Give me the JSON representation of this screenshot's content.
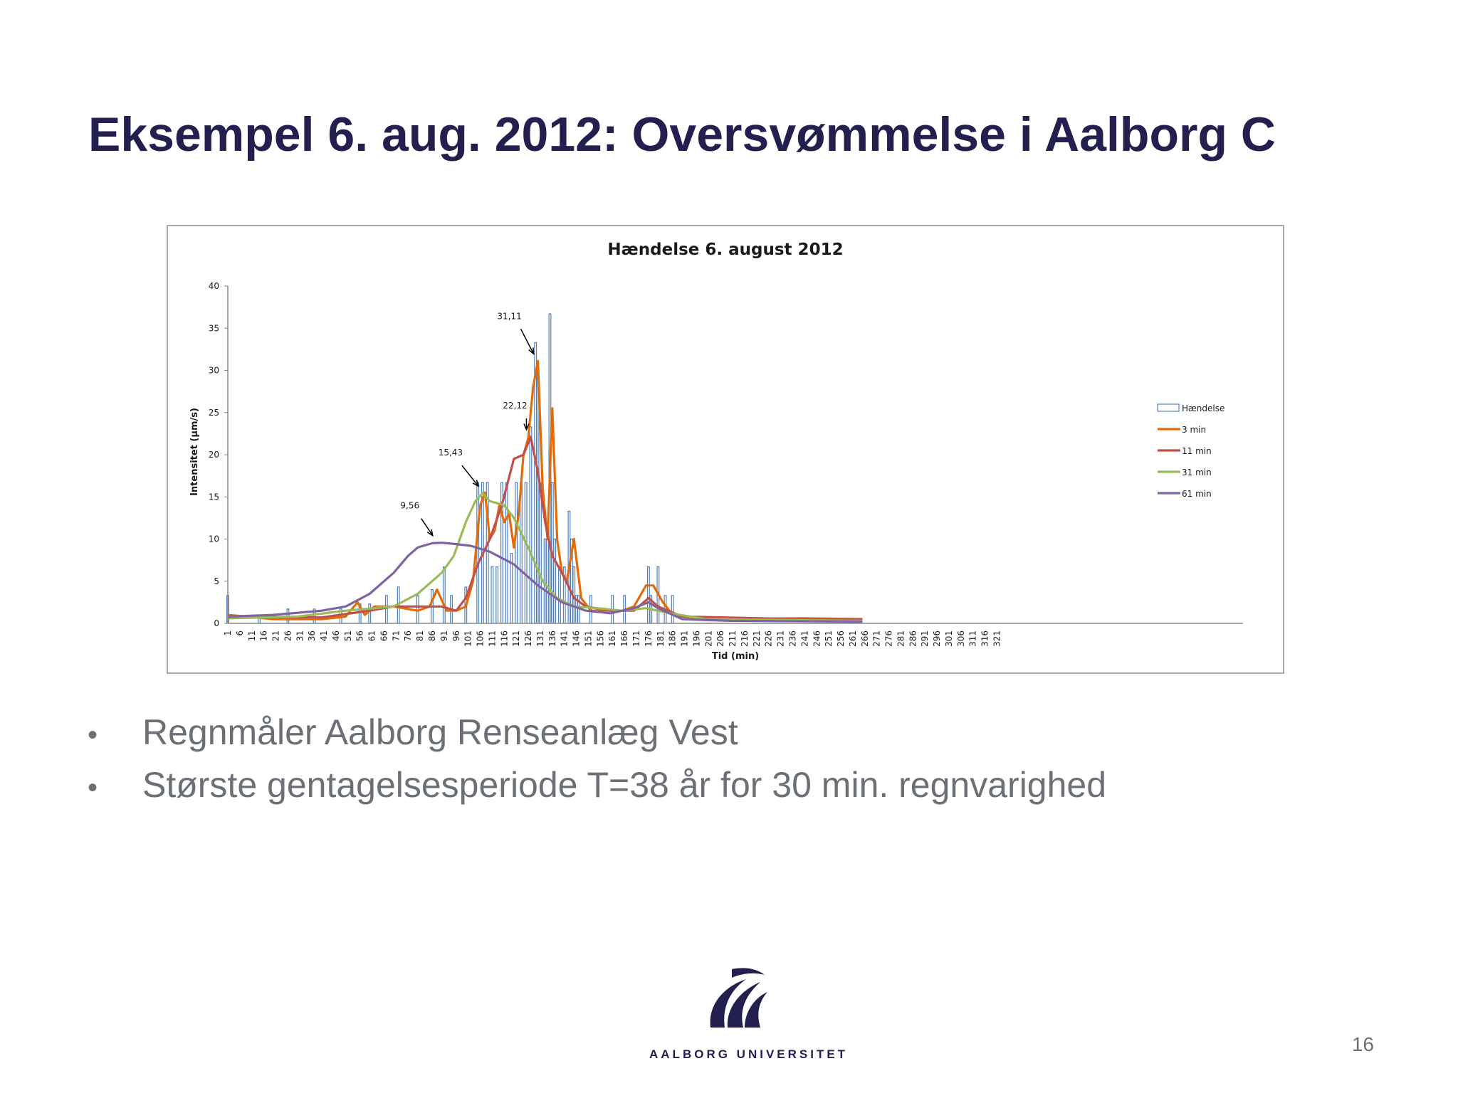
{
  "slide": {
    "title": "Eksempel 6. aug. 2012: Oversvømmelse i Aalborg C",
    "bullets": [
      "Regnmåler Aalborg Renseanlæg Vest",
      "Største gentagelsesperiode T=38 år for 30 min. regnvarighed"
    ],
    "page_number": "16",
    "logo_text": "AALBORG UNIVERSITET",
    "colors": {
      "title": "#231f4f",
      "text": "#6b7077"
    }
  },
  "chart_data": {
    "type": "bar",
    "title": "Hændelse 6. august 2012",
    "xlabel": "Tid (min)",
    "ylabel": "Intensitet (µm/s)",
    "ylim": [
      0,
      40
    ],
    "y_ticks": [
      0,
      5,
      10,
      15,
      20,
      25,
      30,
      35,
      40
    ],
    "x_range": [
      1,
      325
    ],
    "x_ticks": [
      1,
      6,
      11,
      16,
      21,
      26,
      31,
      36,
      41,
      46,
      51,
      56,
      61,
      66,
      71,
      76,
      81,
      86,
      91,
      96,
      101,
      106,
      111,
      116,
      121,
      126,
      131,
      136,
      141,
      146,
      151,
      156,
      161,
      166,
      171,
      176,
      181,
      186,
      191,
      196,
      201,
      206,
      211,
      216,
      221,
      226,
      231,
      236,
      241,
      246,
      251,
      256,
      261,
      266,
      271,
      276,
      281,
      286,
      291,
      296,
      301,
      306,
      311,
      316,
      321
    ],
    "legend_position": "right",
    "grid": false,
    "bars": {
      "name": "Hændelse",
      "color": "#4f81bd",
      "x": [
        1,
        14,
        26,
        37,
        48,
        56,
        60,
        67,
        72,
        80,
        86,
        91,
        94,
        100,
        105,
        107,
        109,
        111,
        113,
        115,
        117,
        119,
        121,
        123,
        125,
        127,
        129,
        130,
        131,
        133,
        134,
        135,
        136,
        137,
        139,
        141,
        143,
        144,
        145,
        146,
        147,
        152,
        161,
        166,
        176,
        177,
        180,
        183,
        186
      ],
      "values": [
        3.3,
        0.7,
        1.7,
        1.7,
        1.7,
        2.3,
        2.3,
        3.3,
        4.3,
        3.3,
        4.0,
        6.7,
        3.3,
        4.3,
        16.7,
        16.7,
        16.7,
        6.7,
        6.7,
        16.7,
        16.7,
        8.3,
        16.7,
        16.7,
        16.7,
        23.3,
        33.3,
        30.0,
        16.7,
        10.0,
        10.0,
        36.7,
        16.7,
        10.0,
        6.7,
        6.7,
        13.3,
        10.0,
        6.7,
        3.3,
        3.3,
        3.3,
        3.3,
        3.3,
        6.7,
        3.3,
        6.7,
        3.3,
        3.3
      ]
    },
    "series": [
      {
        "name": "3 min",
        "color": "#e36c09",
        "x": [
          1,
          20,
          40,
          50,
          55,
          58,
          62,
          70,
          80,
          85,
          88,
          92,
          96,
          100,
          103,
          106,
          108,
          110,
          112,
          114,
          116,
          118,
          120,
          122,
          124,
          126,
          128,
          130,
          132,
          134,
          136,
          138,
          140,
          142,
          145,
          148,
          152,
          160,
          165,
          170,
          175,
          178,
          182,
          186,
          200,
          240,
          265
        ],
        "values": [
          1.0,
          0.5,
          0.5,
          0.8,
          2.5,
          1.0,
          2.0,
          2.0,
          1.5,
          2.0,
          4.0,
          1.5,
          1.5,
          2.0,
          5.0,
          14.0,
          15.5,
          10.0,
          11.0,
          14.0,
          12.0,
          13.0,
          9.0,
          13.0,
          20.0,
          22.0,
          28.0,
          31.11,
          16.0,
          10.0,
          25.5,
          10.0,
          6.0,
          5.0,
          10.0,
          3.0,
          1.5,
          1.5,
          1.5,
          2.0,
          4.5,
          4.5,
          2.5,
          1.0,
          0.5,
          0.6,
          0.5
        ]
      },
      {
        "name": "11 min",
        "color": "#c0504d",
        "x": [
          1,
          40,
          60,
          70,
          80,
          90,
          96,
          100,
          105,
          110,
          115,
          120,
          124,
          127,
          130,
          133,
          136,
          140,
          145,
          150,
          160,
          170,
          176,
          180,
          190,
          240,
          265
        ],
        "values": [
          0.8,
          0.7,
          1.5,
          2.0,
          2.0,
          2.0,
          1.5,
          3.0,
          7.0,
          10.0,
          14.0,
          19.5,
          20.0,
          22.12,
          18.0,
          12.0,
          8.0,
          6.0,
          3.0,
          2.0,
          1.5,
          1.5,
          3.0,
          2.0,
          0.8,
          0.5,
          0.5
        ]
      },
      {
        "name": "31 min",
        "color": "#9bbb59",
        "x": [
          1,
          30,
          50,
          70,
          80,
          90,
          95,
          100,
          104,
          107,
          110,
          116,
          120,
          126,
          132,
          138,
          145,
          155,
          165,
          175,
          185,
          200,
          265
        ],
        "values": [
          0.6,
          0.8,
          1.5,
          2.0,
          3.5,
          6.0,
          8.0,
          12.0,
          14.5,
          15.43,
          14.5,
          14.0,
          12.5,
          9.0,
          5.0,
          3.0,
          2.0,
          1.8,
          1.5,
          1.8,
          1.2,
          0.5,
          0.3
        ]
      },
      {
        "name": "61 min",
        "color": "#8064a2",
        "x": [
          1,
          20,
          40,
          50,
          60,
          70,
          76,
          80,
          86,
          90,
          96,
          102,
          110,
          120,
          130,
          140,
          150,
          160,
          170,
          176,
          180,
          190,
          210,
          265
        ],
        "values": [
          0.8,
          1.0,
          1.5,
          2.0,
          3.5,
          6.0,
          8.0,
          9.0,
          9.5,
          9.56,
          9.4,
          9.2,
          8.5,
          7.0,
          4.5,
          2.5,
          1.5,
          1.2,
          1.8,
          2.5,
          1.8,
          0.5,
          0.3,
          0.2
        ]
      }
    ],
    "annotations": [
      {
        "text": "31,11",
        "x": 130,
        "y": 31.11
      },
      {
        "text": "22,12",
        "x": 127,
        "y": 22.12
      },
      {
        "text": "15,43",
        "x": 107,
        "y": 15.43
      },
      {
        "text": "9,56",
        "x": 88,
        "y": 9.56
      }
    ]
  }
}
